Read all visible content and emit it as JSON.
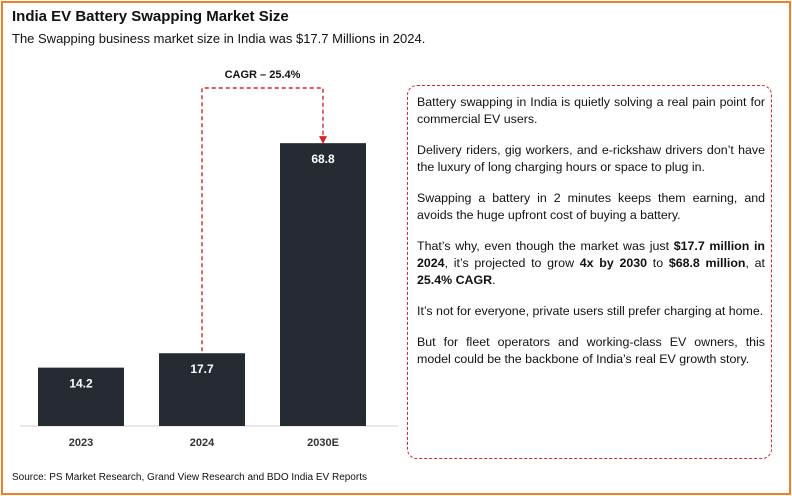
{
  "title": "India EV Battery Swapping Market Size",
  "subtitle": "The Swapping business market size in India was $17.7 Millions in 2024.",
  "source": "Source: PS Market Research, Grand View Research and BDO India EV Reports",
  "colors": {
    "bar": "#252a33",
    "accent_red": "#d9242b",
    "border_orange": "#f07f23",
    "bar_label": "#ffffff"
  },
  "chart_data": {
    "type": "bar",
    "title": "India EV Battery Swapping Market Size",
    "categories": [
      "2023",
      "2024",
      "2030E"
    ],
    "values": [
      14.2,
      17.7,
      68.8
    ],
    "value_labels": [
      "14.2",
      "17.7",
      "68.8"
    ],
    "unit": "USD Million",
    "xlabel": "",
    "ylabel": "",
    "ylim": [
      0,
      72
    ],
    "grid": false,
    "annotation": {
      "text": "CAGR – 25.4%",
      "from": "2024",
      "to": "2030E",
      "style": "red dashed arrow"
    }
  },
  "panel": {
    "p1": "Battery swapping in India is quietly solving a real pain point for commercial EV users.",
    "p2": "Delivery riders, gig workers, and e-rickshaw drivers don’t have the luxury of long charging hours or space to plug in.",
    "p3": "Swapping a battery in 2 minutes keeps them earning, and avoids the huge upfront cost of buying a battery.",
    "p4_a": "That’s why, even though the market was just ",
    "p4_b": "$17.7 million in 2024",
    "p4_c": ", it’s projected to grow ",
    "p4_d": "4x by 2030",
    "p4_e": " to ",
    "p4_f": "$68.8 million",
    "p4_g": ", at ",
    "p4_h": "25.4% CAGR",
    "p4_i": ".",
    "p5": "It’s not for everyone, private users still prefer charging at home.",
    "p6": "But for fleet operators and working-class EV owners, this model could be the backbone of India’s real EV growth story."
  }
}
